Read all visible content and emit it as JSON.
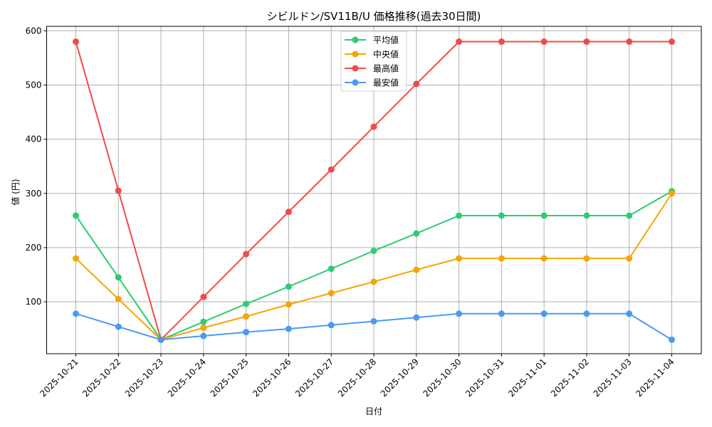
{
  "chart_data": {
    "type": "line",
    "title": "シビルドン/SV11B/U 価格推移(過去30日間)",
    "xlabel": "日付",
    "ylabel": "値 (円)",
    "ylim": [
      10,
      608
    ],
    "yticks": [
      100,
      200,
      300,
      400,
      500,
      600
    ],
    "grid": true,
    "legend_position": "upper center",
    "categories": [
      "2025-10-21",
      "2025-10-22",
      "2025-10-23",
      "2025-10-24",
      "2025-10-25",
      "2025-10-26",
      "2025-10-27",
      "2025-10-28",
      "2025-10-29",
      "2025-10-30",
      "2025-10-31",
      "2025-11-01",
      "2025-11-02",
      "2025-11-03",
      "2025-11-04"
    ],
    "series": [
      {
        "name": "平均値",
        "color": "#2ecc71",
        "values": [
          259,
          145,
          30,
          63,
          96,
          128,
          161,
          194,
          226,
          259,
          259,
          259,
          259,
          259,
          304
        ]
      },
      {
        "name": "中央値",
        "color": "#f5a50a",
        "values": [
          180,
          105,
          30,
          52,
          73,
          95,
          116,
          137,
          159,
          180,
          180,
          180,
          180,
          180,
          300
        ]
      },
      {
        "name": "最高値",
        "color": "#f04a4a",
        "values": [
          580,
          305,
          30,
          109,
          188,
          266,
          344,
          423,
          502,
          580,
          580,
          580,
          580,
          580,
          580
        ]
      },
      {
        "name": "最安値",
        "color": "#4a9af5",
        "values": [
          78,
          54,
          30,
          37,
          44,
          50,
          57,
          64,
          71,
          78,
          78,
          78,
          78,
          78,
          30
        ]
      }
    ]
  }
}
